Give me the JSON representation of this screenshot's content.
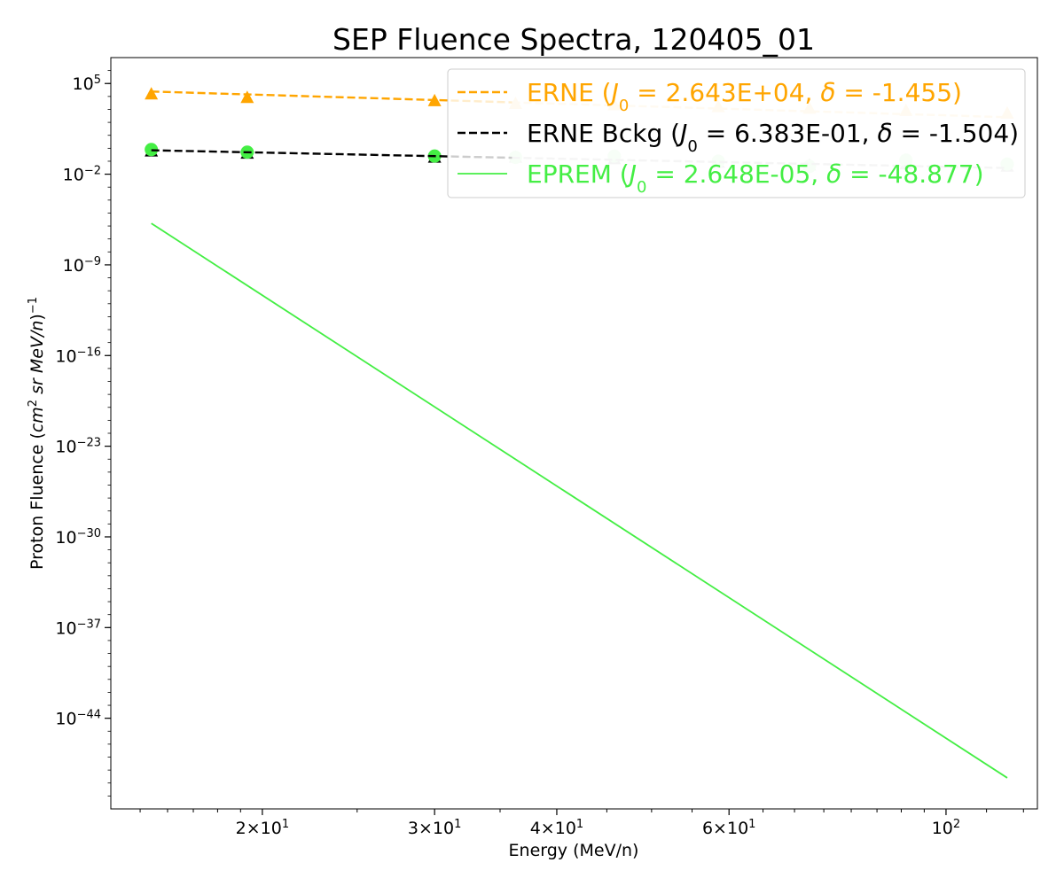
{
  "chart_data": {
    "type": "line",
    "title": "SEP Fluence Spectra, 120405_01",
    "xlabel": "Energy (MeV/n)",
    "ylabel": {
      "prefix": "Proton Fluence (",
      "cm": "cm",
      "cm_exp": "2",
      "rest": " sr MeV/n",
      "suffix": ")",
      "exp": "−1"
    },
    "xscale": "log",
    "yscale": "log",
    "xlim": [
      14.0,
      124.0
    ],
    "ylim_exponent": [
      -51,
      7
    ],
    "legend_position": "upper-right",
    "x_ticks": [
      {
        "value": 20,
        "base": "2×10",
        "exp": "1"
      },
      {
        "value": 30,
        "base": "3×10",
        "exp": "1"
      },
      {
        "value": 40,
        "base": "4×10",
        "exp": "1"
      },
      {
        "value": 60,
        "base": "6×10",
        "exp": "1"
      },
      {
        "value": 100,
        "base": "10",
        "exp": "2"
      }
    ],
    "y_ticks": [
      {
        "exponent": 5,
        "base": "10",
        "exp": "5"
      },
      {
        "exponent": -2,
        "base": "10",
        "exp": "−2"
      },
      {
        "exponent": -9,
        "base": "10",
        "exp": "−9"
      },
      {
        "exponent": -16,
        "base": "10",
        "exp": "−16"
      },
      {
        "exponent": -23,
        "base": "10",
        "exp": "−23"
      },
      {
        "exponent": -30,
        "base": "10",
        "exp": "−30"
      },
      {
        "exponent": -37,
        "base": "10",
        "exp": "−37"
      },
      {
        "exponent": -44,
        "base": "10",
        "exp": "−44"
      }
    ],
    "series": [
      {
        "name": "ERNE",
        "legend": {
          "a": "ERNE (",
          "j": "J",
          "sub": "0",
          "b": " = 2.643E+04, ",
          "d": "δ",
          "c": " = -1.455)"
        },
        "color": "#FFA500",
        "faded_color": "#FFE4B8",
        "marker": "triangle",
        "x": [
          15.4,
          19.3,
          30.0,
          36.3,
          45.8,
          58.5,
          72.5,
          91.0,
          115.5
        ],
        "y": [
          15000.0,
          8000.0,
          4500.0,
          2800.0,
          2200.0,
          1600.0,
          1200.0,
          800.0,
          500.0
        ],
        "fit_x": [
          15.4,
          115.5
        ],
        "fit_y": [
          24000.0,
          250.0
        ]
      },
      {
        "name": "ERNE Bckg",
        "legend": {
          "a": "ERNE Bckg (",
          "j": "J",
          "sub": "0",
          "b": " = 6.383E-01, ",
          "d": "δ",
          "c": " = -1.504)"
        },
        "color": "#000000",
        "faded_color": "#CCCCCC",
        "marker": "triangle",
        "x": [
          15.4,
          19.3,
          30.0,
          36.3,
          45.8,
          58.5,
          72.5,
          91.0,
          115.5
        ],
        "y": [
          0.6,
          0.4,
          0.2,
          0.2,
          0.15,
          0.08,
          0.05,
          0.06,
          0.04
        ],
        "fit_x": [
          15.4,
          115.5
        ],
        "fit_y": [
          0.7,
          0.03
        ]
      },
      {
        "name": "EPREM",
        "legend": {
          "a": "EPREM (",
          "j": "J",
          "sub": "0",
          "b": " = 2.648E-05, ",
          "d": "δ",
          "c": " = -48.877)"
        },
        "color": "#44EE44",
        "faded_color": "#D6F8D6",
        "marker": "circle",
        "x": [
          15.4,
          19.3,
          30.0,
          36.3,
          45.8,
          58.5,
          72.5,
          91.0,
          115.5
        ],
        "y": [
          0.8,
          0.5,
          0.25,
          0.2,
          0.25,
          0.1,
          0.04,
          0.12,
          0.06
        ],
        "fit_x": [
          15.4,
          115.5
        ],
        "fit_y": [
          1.6e-06,
          2.5e-49
        ]
      }
    ]
  }
}
